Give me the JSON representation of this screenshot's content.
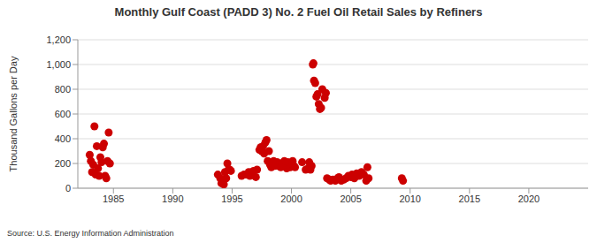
{
  "chart_data": {
    "type": "scatter",
    "title": "Monthly Gulf Coast (PADD 3) No. 2 Fuel Oil Retail Sales by Refiners",
    "y_label": "Thousand Gallons per Day",
    "source": "Source: U.S. Energy Information Administration",
    "x": [
      1983.0,
      1983.1,
      1983.2,
      1983.3,
      1983.4,
      1983.5,
      1983.6,
      1983.7,
      1983.8,
      1983.9,
      1984.0,
      1984.1,
      1984.2,
      1984.3,
      1984.4,
      1984.5,
      1984.6,
      1984.7,
      1993.8,
      1994.0,
      1994.1,
      1994.2,
      1994.3,
      1994.4,
      1994.5,
      1994.6,
      1994.7,
      1994.8,
      1994.9,
      1995.8,
      1996.0,
      1996.2,
      1996.4,
      1996.5,
      1996.8,
      1997.0,
      1997.1,
      1997.3,
      1997.4,
      1997.5,
      1997.6,
      1997.7,
      1997.8,
      1997.9,
      1998.0,
      1998.1,
      1998.2,
      1998.3,
      1998.4,
      1998.5,
      1998.6,
      1998.7,
      1998.8,
      1998.9,
      1999.0,
      1999.1,
      1999.2,
      1999.3,
      1999.4,
      1999.5,
      1999.6,
      1999.7,
      1999.8,
      1999.9,
      2000.0,
      2000.1,
      2000.2,
      2000.3,
      2000.9,
      2001.2,
      2001.4,
      2001.5,
      2001.6,
      2001.7,
      2001.8,
      2001.85,
      2001.9,
      2002.0,
      2002.1,
      2002.2,
      2002.3,
      2002.4,
      2002.5,
      2002.6,
      2002.8,
      2002.9,
      2003.0,
      2003.2,
      2003.3,
      2003.5,
      2003.7,
      2003.9,
      2004.0,
      2004.2,
      2004.4,
      2004.6,
      2004.8,
      2005.0,
      2005.1,
      2005.3,
      2005.5,
      2005.7,
      2005.9,
      2006.1,
      2006.3,
      2006.4,
      2006.5,
      2009.3,
      2009.4
    ],
    "values": [
      270,
      220,
      130,
      190,
      500,
      110,
      340,
      160,
      100,
      250,
      210,
      330,
      360,
      100,
      80,
      220,
      450,
      200,
      110,
      80,
      40,
      60,
      30,
      130,
      80,
      200,
      150,
      150,
      140,
      100,
      110,
      110,
      130,
      100,
      140,
      90,
      150,
      310,
      330,
      300,
      340,
      280,
      370,
      390,
      220,
      300,
      190,
      170,
      200,
      220,
      180,
      190,
      210,
      180,
      200,
      170,
      200,
      190,
      220,
      180,
      160,
      210,
      190,
      170,
      200,
      220,
      180,
      170,
      210,
      150,
      160,
      210,
      150,
      180,
      1000,
      1010,
      870,
      850,
      740,
      760,
      680,
      640,
      650,
      800,
      730,
      770,
      80,
      70,
      60,
      70,
      60,
      80,
      90,
      60,
      70,
      80,
      100,
      90,
      110,
      80,
      120,
      100,
      130,
      110,
      60,
      170,
      80,
      80,
      60
    ],
    "color": "#cc0000",
    "marker": "circle",
    "xlim": [
      1982,
      2025
    ],
    "xticks": [
      1985,
      1990,
      1995,
      2000,
      2005,
      2010,
      2015,
      2020
    ],
    "ylim": [
      0,
      1200
    ],
    "yticks": [
      0,
      200,
      400,
      600,
      800,
      {
        "value": 1000,
        "label": "1,000"
      },
      {
        "value": 1200,
        "label": "1,200"
      }
    ],
    "grid": true
  }
}
